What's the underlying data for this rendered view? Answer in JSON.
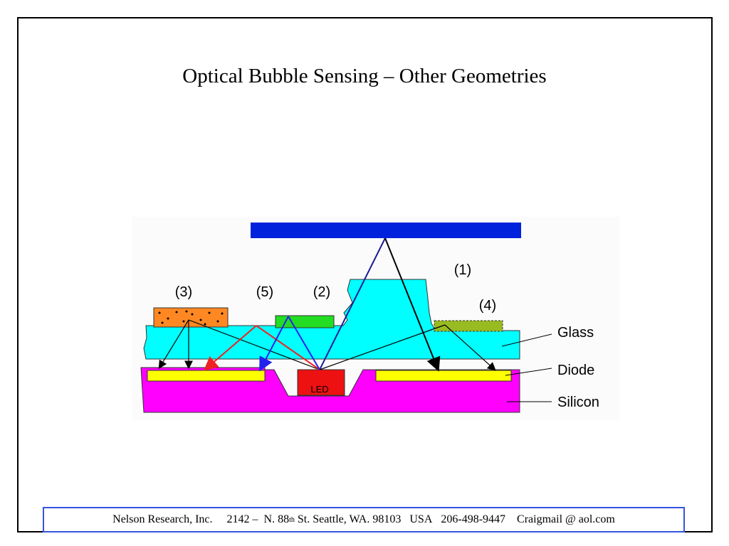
{
  "header": {
    "title": "Optical Bubble Sensing – Other Geometries"
  },
  "diagram": {
    "labels": [
      "(1)",
      "(2)",
      "(3)",
      "(4)",
      "(5)"
    ],
    "layers": [
      "Glass",
      "Diode",
      "Silicon"
    ],
    "led": "LED"
  },
  "footer": {
    "company": "Nelson Research, Inc.",
    "street": "2142 –  N. 88",
    "street_sup": "th",
    "street_rest": " St. Seattle, WA. 98103",
    "country": "USA",
    "phone": "206-498-9447",
    "email": "Craigmail @ aol.com"
  }
}
